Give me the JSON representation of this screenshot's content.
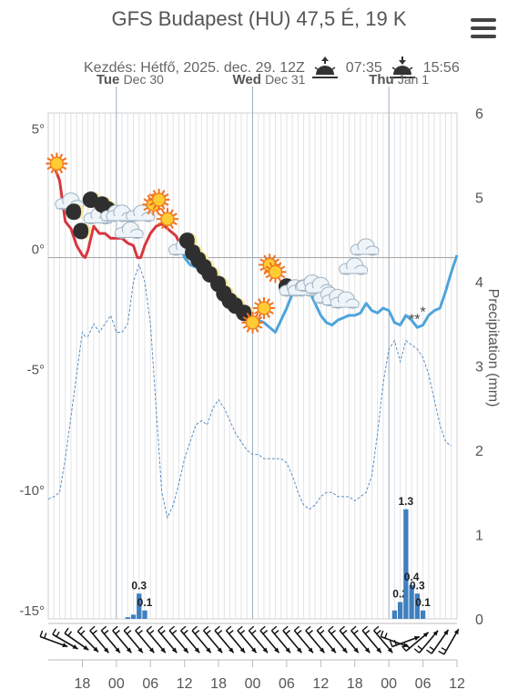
{
  "header": {
    "title": "GFS Budapest (HU) 47,5 É, 19 K",
    "start_label": "Kezdés: Hétfő, 2025. dec. 29. 12Z",
    "sunrise": "07:35",
    "sunset": "15:56"
  },
  "chart_data": {
    "type": "line",
    "days": [
      {
        "dow": "Tue",
        "date": "Dec 30",
        "hour": 24
      },
      {
        "dow": "Wed",
        "date": "Dec 31",
        "hour": 48
      },
      {
        "dow": "Thu",
        "date": "Jan 1",
        "hour": 72
      }
    ],
    "x_ticks": [
      {
        "hour": 18,
        "label": "18"
      },
      {
        "hour": 24,
        "label": "00"
      },
      {
        "hour": 30,
        "label": "06"
      },
      {
        "hour": 36,
        "label": "12"
      },
      {
        "hour": 42,
        "label": "18"
      },
      {
        "hour": 48,
        "label": "00"
      },
      {
        "hour": 54,
        "label": "06"
      },
      {
        "hour": 60,
        "label": "12"
      },
      {
        "hour": 66,
        "label": "18"
      },
      {
        "hour": 72,
        "label": "00"
      },
      {
        "hour": 78,
        "label": "06"
      },
      {
        "hour": 84,
        "label": "12"
      }
    ],
    "x_range": [
      12,
      84
    ],
    "y_left": {
      "range": [
        -15,
        6
      ],
      "ticks": [
        {
          "v": 5,
          "label": "5°"
        },
        {
          "v": 0,
          "label": "0°"
        },
        {
          "v": -5,
          "label": "-5°"
        },
        {
          "v": -10,
          "label": "-10°"
        },
        {
          "v": -15,
          "label": "-15°"
        }
      ]
    },
    "y_right": {
      "label": "Precipitation (mm)",
      "range": [
        0,
        6
      ],
      "ticks": [
        0,
        1,
        2,
        3,
        4,
        5,
        6
      ]
    },
    "temperature_red": [
      [
        13,
        3.8
      ],
      [
        14,
        3.2
      ],
      [
        15,
        1.5
      ],
      [
        16,
        1.2
      ],
      [
        17,
        0.5
      ],
      [
        18,
        0.1
      ],
      [
        18.5,
        0.0
      ],
      [
        19,
        0.3
      ],
      [
        20,
        1.3
      ],
      [
        21,
        1.0
      ],
      [
        22,
        1.0
      ],
      [
        23,
        0.8
      ],
      [
        24,
        0.8
      ],
      [
        25,
        0.8
      ],
      [
        26,
        0.6
      ],
      [
        27,
        0.5
      ],
      [
        27.7,
        0.0
      ],
      [
        28.3,
        0.0
      ],
      [
        29,
        0.5
      ],
      [
        30,
        1.0
      ],
      [
        31,
        1.3
      ],
      [
        32,
        1.4
      ],
      [
        33,
        1.2
      ],
      [
        34,
        1.0
      ],
      [
        34.5,
        0.9
      ],
      [
        35.5,
        0.4
      ],
      [
        36,
        0.3
      ]
    ],
    "temperature_blue": [
      [
        35.5,
        0.3
      ],
      [
        36,
        0.0
      ],
      [
        37,
        -0.3
      ],
      [
        38,
        -0.4
      ],
      [
        39,
        -0.5
      ],
      [
        40,
        -0.6
      ],
      [
        41,
        -0.4
      ],
      [
        42,
        -0.9
      ],
      [
        43,
        -1.4
      ],
      [
        44,
        -1.7
      ],
      [
        45,
        -2.0
      ],
      [
        46,
        -2.2
      ],
      [
        47,
        -2.4
      ],
      [
        48,
        -2.6
      ],
      [
        49,
        -2.6
      ],
      [
        50,
        -2.7
      ],
      [
        51,
        -2.9
      ],
      [
        52,
        -3.1
      ],
      [
        53,
        -2.6
      ],
      [
        54,
        -2.1
      ],
      [
        55,
        -1.5
      ],
      [
        56,
        -1.2
      ],
      [
        57,
        -1.2
      ],
      [
        58,
        -1.4
      ],
      [
        59,
        -1.9
      ],
      [
        60,
        -2.4
      ],
      [
        61,
        -2.7
      ],
      [
        62,
        -2.8
      ],
      [
        63,
        -2.6
      ],
      [
        64,
        -2.5
      ],
      [
        65,
        -2.4
      ],
      [
        66,
        -2.4
      ],
      [
        67,
        -2.3
      ],
      [
        68,
        -1.9
      ],
      [
        69,
        -2.2
      ],
      [
        70,
        -2.3
      ],
      [
        71,
        -2.1
      ],
      [
        72,
        -2.2
      ],
      [
        73,
        -2.7
      ],
      [
        74,
        -2.8
      ],
      [
        75,
        -2.4
      ],
      [
        76,
        -2.6
      ],
      [
        77,
        -2.9
      ],
      [
        78,
        -2.8
      ],
      [
        79,
        -2.4
      ],
      [
        80,
        -2.2
      ],
      [
        81,
        -2.1
      ],
      [
        82,
        -1.4
      ],
      [
        83,
        -0.6
      ],
      [
        84,
        0.1
      ]
    ],
    "precip_dashed_right": [
      [
        12,
        1.42
      ],
      [
        13,
        1.45
      ],
      [
        14,
        1.5
      ],
      [
        15,
        1.9
      ],
      [
        16,
        2.4
      ],
      [
        17,
        2.9
      ],
      [
        18,
        3.4
      ],
      [
        18.5,
        3.35
      ],
      [
        19,
        3.35
      ],
      [
        20,
        3.5
      ],
      [
        21,
        3.4
      ],
      [
        22,
        3.5
      ],
      [
        23,
        3.6
      ],
      [
        24,
        3.4
      ],
      [
        25,
        3.4
      ],
      [
        26,
        3.5
      ],
      [
        27,
        4.0
      ],
      [
        28,
        4.2
      ],
      [
        29,
        4.0
      ],
      [
        30,
        3.5
      ],
      [
        31,
        2.5
      ],
      [
        32,
        1.5
      ],
      [
        33,
        1.2
      ],
      [
        34,
        1.35
      ],
      [
        35,
        1.6
      ],
      [
        36,
        1.9
      ],
      [
        37,
        2.1
      ],
      [
        38,
        2.3
      ],
      [
        39,
        2.35
      ],
      [
        40,
        2.3
      ],
      [
        41,
        2.5
      ],
      [
        42,
        2.6
      ],
      [
        43,
        2.5
      ],
      [
        44,
        2.35
      ],
      [
        45,
        2.2
      ],
      [
        46,
        2.1
      ],
      [
        47,
        2.0
      ],
      [
        48,
        1.95
      ],
      [
        49,
        1.95
      ],
      [
        50,
        1.9
      ],
      [
        51,
        1.9
      ],
      [
        52,
        1.9
      ],
      [
        53,
        1.9
      ],
      [
        54,
        1.85
      ],
      [
        55,
        1.7
      ],
      [
        56,
        1.5
      ],
      [
        57,
        1.35
      ],
      [
        58,
        1.3
      ],
      [
        59,
        1.35
      ],
      [
        60,
        1.45
      ],
      [
        61,
        1.5
      ],
      [
        62,
        1.5
      ],
      [
        63,
        1.45
      ],
      [
        64,
        1.45
      ],
      [
        65,
        1.45
      ],
      [
        66,
        1.4
      ],
      [
        67,
        1.45
      ],
      [
        68,
        1.5
      ],
      [
        69,
        1.7
      ],
      [
        70,
        2.2
      ],
      [
        71,
        2.8
      ],
      [
        72,
        3.2
      ],
      [
        73,
        3.3
      ],
      [
        74,
        3.05
      ],
      [
        75,
        3.3
      ],
      [
        76,
        3.25
      ],
      [
        77,
        3.2
      ],
      [
        78,
        3.1
      ],
      [
        79,
        2.9
      ],
      [
        80,
        2.6
      ],
      [
        81,
        2.3
      ],
      [
        82,
        2.1
      ],
      [
        83,
        2.05
      ]
    ],
    "precip_bars": [
      {
        "hour": 26,
        "mm": 0.02
      },
      {
        "hour": 27,
        "mm": 0.05
      },
      {
        "hour": 28,
        "mm": 0.3,
        "label": "0.3"
      },
      {
        "hour": 29,
        "mm": 0.1,
        "label": "0.1"
      },
      {
        "hour": 73,
        "mm": 0.1
      },
      {
        "hour": 74,
        "mm": 0.2,
        "label": "0.2"
      },
      {
        "hour": 75,
        "mm": 1.3,
        "label": "1.3"
      },
      {
        "hour": 76,
        "mm": 0.4,
        "label": "0.4"
      },
      {
        "hour": 77,
        "mm": 0.3,
        "label": "0.3"
      },
      {
        "hour": 78,
        "mm": 0.1,
        "label": "0.1"
      }
    ],
    "weather_icons": [
      {
        "hour": 13.5,
        "t": 3.9,
        "kind": "sun"
      },
      {
        "hour": 15.5,
        "t": 2.3,
        "kind": "cloud"
      },
      {
        "hour": 16.5,
        "t": 1.9,
        "kind": "moon"
      },
      {
        "hour": 17.8,
        "t": 1.1,
        "kind": "moon"
      },
      {
        "hour": 19.5,
        "t": 2.4,
        "kind": "moon"
      },
      {
        "hour": 20.5,
        "t": 1.7,
        "kind": "cloud"
      },
      {
        "hour": 21.5,
        "t": 2.2,
        "kind": "moon"
      },
      {
        "hour": 22.5,
        "t": 2.0,
        "kind": "moon"
      },
      {
        "hour": 23.5,
        "t": 1.8,
        "kind": "cloud"
      },
      {
        "hour": 24.5,
        "t": 1.8,
        "kind": "cloud"
      },
      {
        "hour": 26.0,
        "t": 1.1,
        "kind": "cloud"
      },
      {
        "hour": 28.0,
        "t": 1.8,
        "kind": "cloud"
      },
      {
        "hour": 30.5,
        "t": 2.2,
        "kind": "sun"
      },
      {
        "hour": 31.5,
        "t": 2.4,
        "kind": "sun"
      },
      {
        "hour": 33.0,
        "t": 1.6,
        "kind": "sun"
      },
      {
        "hour": 35.5,
        "t": 0.4,
        "kind": "cloud"
      },
      {
        "hour": 36.5,
        "t": 0.7,
        "kind": "moon"
      },
      {
        "hour": 37.5,
        "t": 0.2,
        "kind": "moon"
      },
      {
        "hour": 38.5,
        "t": -0.1,
        "kind": "moon"
      },
      {
        "hour": 39.5,
        "t": -0.4,
        "kind": "moon"
      },
      {
        "hour": 40.5,
        "t": -0.7,
        "kind": "moon"
      },
      {
        "hour": 42.0,
        "t": -1.1,
        "kind": "moon"
      },
      {
        "hour": 43.0,
        "t": -1.5,
        "kind": "moon"
      },
      {
        "hour": 44.0,
        "t": -1.8,
        "kind": "moon"
      },
      {
        "hour": 45.0,
        "t": -2.0,
        "kind": "moon"
      },
      {
        "hour": 46.5,
        "t": -2.3,
        "kind": "moon"
      },
      {
        "hour": 48.0,
        "t": -2.7,
        "kind": "sun"
      },
      {
        "hour": 50.0,
        "t": -2.1,
        "kind": "sun"
      },
      {
        "hour": 51.0,
        "t": -0.3,
        "kind": "sun"
      },
      {
        "hour": 52.0,
        "t": -0.6,
        "kind": "sun"
      },
      {
        "hour": 54.0,
        "t": -1.2,
        "kind": "moon"
      },
      {
        "hour": 55.0,
        "t": -1.3,
        "kind": "cloud"
      },
      {
        "hour": 56.5,
        "t": -1.3,
        "kind": "cloud"
      },
      {
        "hour": 58.0,
        "t": -1.1,
        "kind": "cloud"
      },
      {
        "hour": 59.5,
        "t": -1.2,
        "kind": "cloud"
      },
      {
        "hour": 61.0,
        "t": -1.6,
        "kind": "cloud"
      },
      {
        "hour": 62.5,
        "t": -1.7,
        "kind": "cloud"
      },
      {
        "hour": 64.0,
        "t": -1.8,
        "kind": "cloud"
      },
      {
        "hour": 65.5,
        "t": -0.4,
        "kind": "cloud"
      },
      {
        "hour": 67.5,
        "t": 0.4,
        "kind": "cloud"
      }
    ],
    "snow_marks": [
      {
        "hour": 76.0,
        "t": -2.3
      },
      {
        "hour": 77.0,
        "t": -2.3
      },
      {
        "hour": 78.0,
        "t": -2.0
      }
    ],
    "wind_barbs": [
      {
        "hour": 13,
        "dir": 290
      },
      {
        "hour": 15,
        "dir": 300
      },
      {
        "hour": 17,
        "dir": 305
      },
      {
        "hour": 19,
        "dir": 315
      },
      {
        "hour": 21,
        "dir": 320
      },
      {
        "hour": 23,
        "dir": 320
      },
      {
        "hour": 25,
        "dir": 320
      },
      {
        "hour": 27,
        "dir": 320
      },
      {
        "hour": 29,
        "dir": 320
      },
      {
        "hour": 31,
        "dir": 320
      },
      {
        "hour": 33,
        "dir": 320
      },
      {
        "hour": 35,
        "dir": 320
      },
      {
        "hour": 37,
        "dir": 320
      },
      {
        "hour": 39,
        "dir": 320
      },
      {
        "hour": 41,
        "dir": 320
      },
      {
        "hour": 43,
        "dir": 320
      },
      {
        "hour": 45,
        "dir": 320
      },
      {
        "hour": 47,
        "dir": 320
      },
      {
        "hour": 49,
        "dir": 320
      },
      {
        "hour": 51,
        "dir": 320
      },
      {
        "hour": 53,
        "dir": 320
      },
      {
        "hour": 55,
        "dir": 320
      },
      {
        "hour": 57,
        "dir": 320
      },
      {
        "hour": 59,
        "dir": 320
      },
      {
        "hour": 61,
        "dir": 320
      },
      {
        "hour": 63,
        "dir": 320
      },
      {
        "hour": 65,
        "dir": 320
      },
      {
        "hour": 67,
        "dir": 320
      },
      {
        "hour": 69,
        "dir": 320
      },
      {
        "hour": 71,
        "dir": 320
      },
      {
        "hour": 73,
        "dir": 290
      },
      {
        "hour": 75,
        "dir": 250
      },
      {
        "hour": 77,
        "dir": 230
      },
      {
        "hour": 79,
        "dir": 220
      },
      {
        "hour": 81,
        "dir": 215
      },
      {
        "hour": 83,
        "dir": 210
      }
    ],
    "colors": {
      "red_line": "#d9363e",
      "blue_line": "#4ea4dc",
      "dashed_line": "#5a8ec4",
      "bars": "#3f7fbf",
      "grid": "#e3e3e3",
      "zero_line": "#aaaaaa",
      "day_line": "#9cb0c4"
    }
  }
}
